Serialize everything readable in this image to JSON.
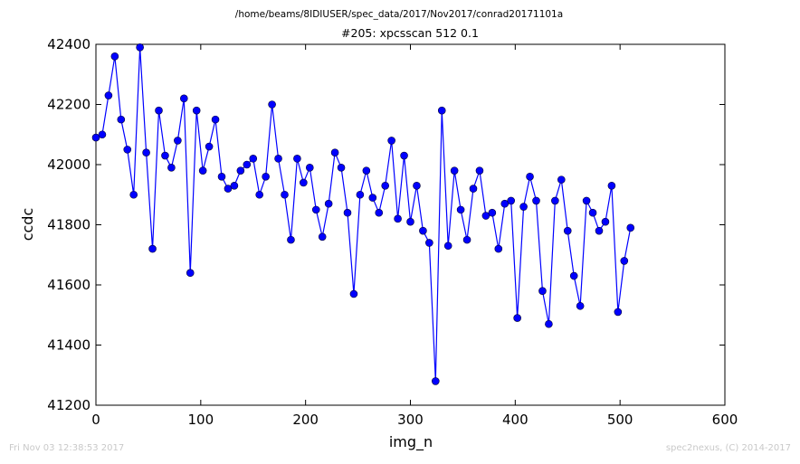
{
  "page": {
    "footer_left": "Fri Nov 03 12:38:53 2017",
    "footer_right": "spec2nexus, (C) 2014-2017"
  },
  "chart_data": {
    "type": "line",
    "title": "/home/beams/8IDIUSER/spec_data/2017/Nov2017/conrad20171101a",
    "subtitle": "#205: xpcsscan 512 0.1",
    "xlabel": "img_n",
    "ylabel": "ccdc",
    "xlim": [
      0,
      600
    ],
    "ylim": [
      41200,
      42400
    ],
    "xticks": [
      0,
      100,
      200,
      300,
      400,
      500,
      600
    ],
    "yticks": [
      41200,
      41400,
      41600,
      41800,
      42000,
      42200,
      42400
    ],
    "grid": false,
    "legend": "none",
    "series_color": "#0000ff",
    "series": [
      {
        "x": [
          0,
          6,
          12,
          18,
          24,
          30,
          36,
          42,
          48,
          54,
          60,
          66,
          72,
          78,
          84,
          90,
          96,
          102,
          108,
          114,
          120,
          126,
          132,
          138,
          144,
          150,
          156,
          162,
          168,
          174,
          180,
          186,
          192,
          198,
          204,
          210,
          216,
          222,
          228,
          234,
          240,
          246,
          252,
          258,
          264,
          270,
          276,
          282,
          288,
          294,
          300,
          306,
          312,
          318,
          324,
          330,
          336,
          342,
          348,
          354,
          360,
          366,
          372,
          378,
          384,
          390,
          396,
          402,
          408,
          414,
          420,
          426,
          432,
          438,
          444,
          450,
          456,
          462,
          468,
          474,
          480,
          486,
          492,
          498,
          504,
          510
        ],
        "y": [
          42090,
          42100,
          42230,
          42360,
          42150,
          42050,
          41900,
          42390,
          42040,
          41720,
          42180,
          42030,
          41990,
          42080,
          42220,
          41640,
          42180,
          41980,
          42060,
          42150,
          41960,
          41920,
          41930,
          41980,
          42000,
          42020,
          41900,
          41960,
          42200,
          42020,
          41900,
          41750,
          42020,
          41940,
          41990,
          41850,
          41760,
          41870,
          42040,
          41990,
          41840,
          41570,
          41900,
          41980,
          41890,
          41840,
          41930,
          42080,
          41820,
          42030,
          41810,
          41930,
          41780,
          41740,
          41280,
          42180,
          41730,
          41980,
          41850,
          41750,
          41920,
          41980,
          41830,
          41840,
          41720,
          41870,
          41880,
          41490,
          41860,
          41960,
          41880,
          41580,
          41470,
          41880,
          41950,
          41780,
          41630,
          41530,
          41880,
          41840,
          41780,
          41810,
          41930,
          41510,
          41680,
          41790
        ]
      }
    ]
  }
}
